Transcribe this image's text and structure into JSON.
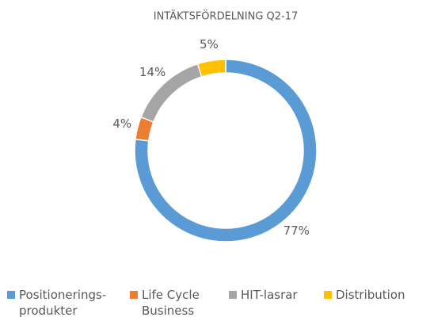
{
  "chart_data": {
    "type": "donut",
    "title": "INTÄKTSFÖRDELNING Q2-17",
    "categories": [
      "Positionerings-produkter",
      "Life Cycle Business",
      "HIT-lasrar",
      "Distribution"
    ],
    "values": [
      77,
      4,
      14,
      5
    ],
    "value_labels": [
      "77%",
      "4%",
      "14%",
      "5%"
    ],
    "colors": [
      "#5b9bd5",
      "#ed7d31",
      "#a5a5a5",
      "#ffc000"
    ],
    "legend": "bottom"
  }
}
